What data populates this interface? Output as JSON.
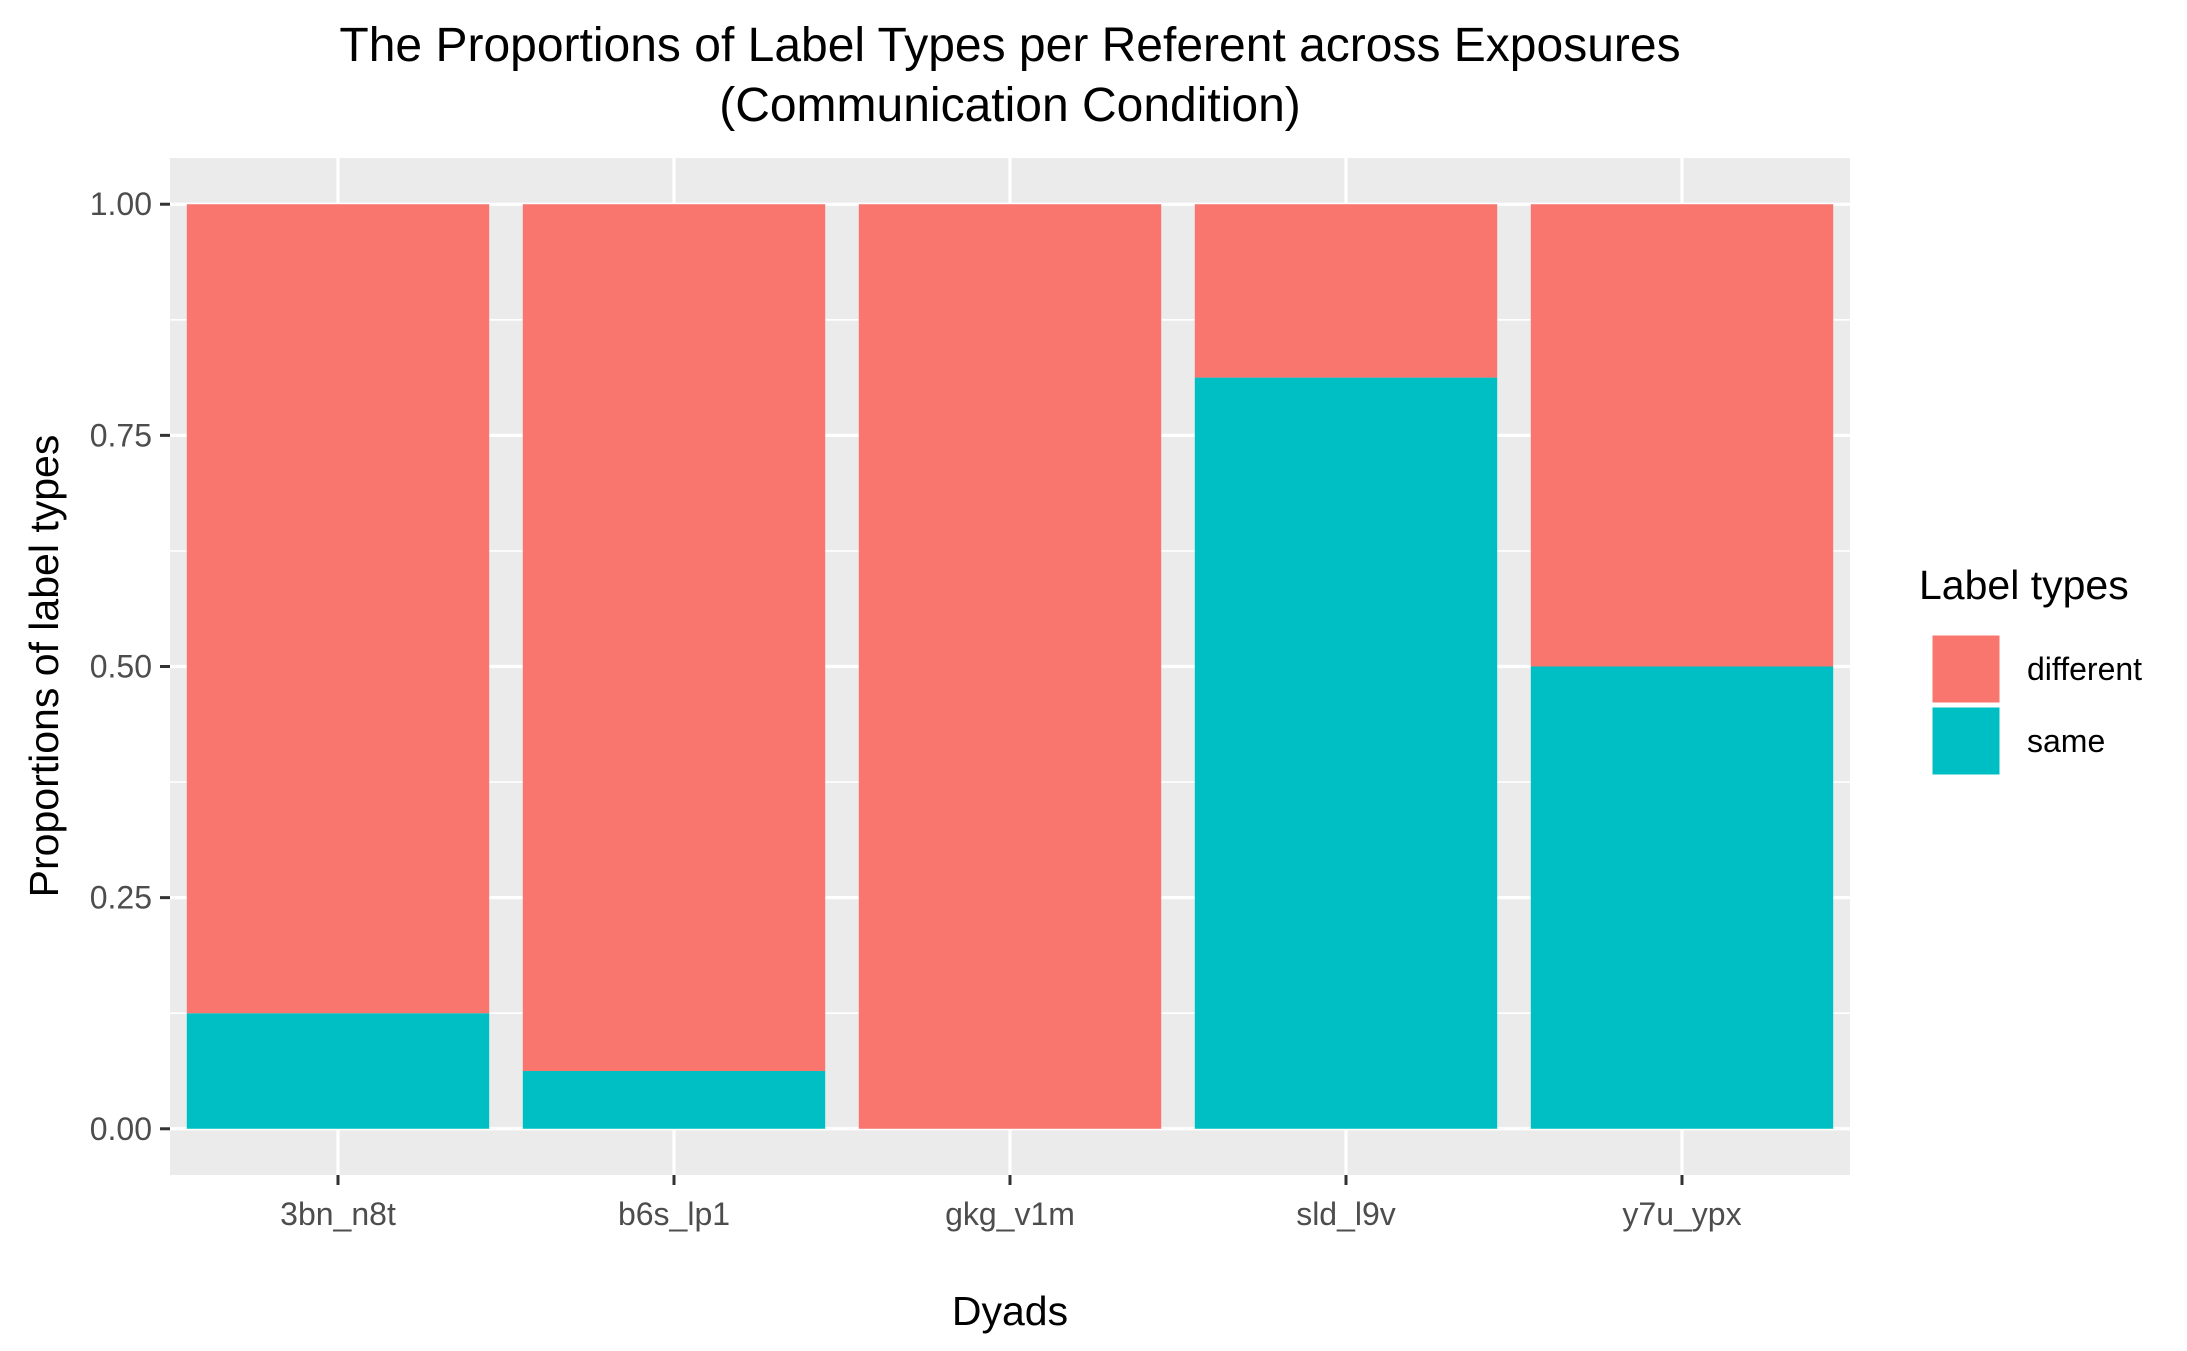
{
  "chart_data": {
    "type": "bar",
    "stacked": true,
    "title": "The Proportions of Label Types per Referent across Exposures",
    "subtitle": "(Communication Condition)",
    "xlabel": "Dyads",
    "ylabel": "Proportions of label types",
    "categories": [
      "3bn_n8t",
      "b6s_lp1",
      "gkg_v1m",
      "sld_l9v",
      "y7u_ypx"
    ],
    "series": [
      {
        "name": "same",
        "color": "#00BFC4",
        "values": [
          0.125,
          0.0625,
          0.0,
          0.8125,
          0.5
        ]
      },
      {
        "name": "different",
        "color": "#F8766D",
        "values": [
          0.875,
          0.9375,
          1.0,
          0.1875,
          0.5
        ]
      }
    ],
    "ylim": [
      -0.05,
      1.05
    ],
    "yticks": [
      0.0,
      0.25,
      0.5,
      0.75,
      1.0
    ],
    "ytick_labels": [
      "0.00",
      "0.25",
      "0.50",
      "0.75",
      "1.00"
    ],
    "grid": true,
    "legend": {
      "title": "Label types",
      "position": "right",
      "items": [
        {
          "label": "different",
          "color": "#F8766D"
        },
        {
          "label": "same",
          "color": "#00BFC4"
        }
      ]
    },
    "panel_background": "#EBEBEB"
  }
}
